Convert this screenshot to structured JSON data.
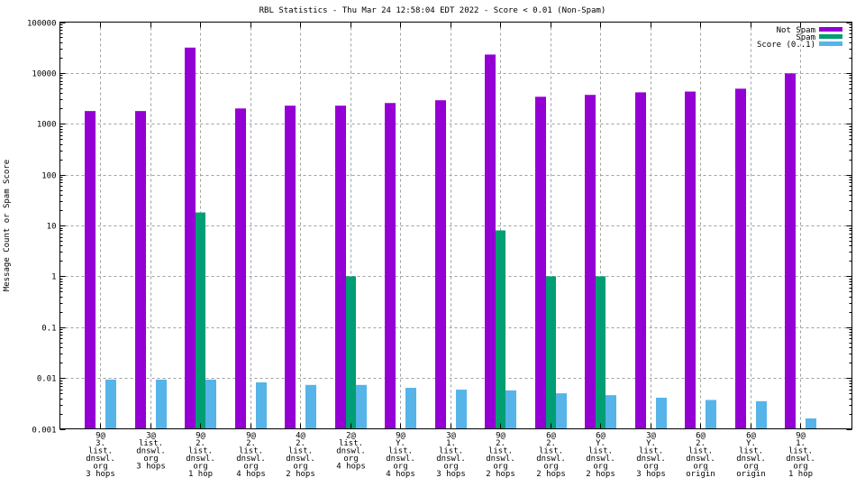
{
  "chart_data": {
    "type": "bar",
    "title": "RBL Statistics - Thu Mar 24 12:58:04 EDT 2022 - Score < 0.01 (Non-Spam)",
    "xlabel": "",
    "ylabel": "Message Count or Spam Score",
    "yscale": "log",
    "ylim": [
      0.001,
      100000
    ],
    "yticks": [
      "0.001",
      "0.01",
      "0.1",
      "1",
      "10",
      "100",
      "1000",
      "10000",
      "100000"
    ],
    "ytick_values": [
      0.001,
      0.01,
      0.1,
      1,
      10,
      100,
      1000,
      10000,
      100000
    ],
    "grid": true,
    "legend_position": "top-right",
    "categories": [
      [
        "9@",
        "3.",
        "list.",
        "dnswl.",
        "org",
        "3 hops"
      ],
      [
        "3@",
        "list.",
        "dnswl.",
        "org",
        "3 hops"
      ],
      [
        "9@",
        "2.",
        "list.",
        "dnswl.",
        "org",
        "1 hop"
      ],
      [
        "9@",
        "2.",
        "list.",
        "dnswl.",
        "org",
        "4 hops"
      ],
      [
        "4@",
        "2.",
        "list.",
        "dnswl.",
        "org",
        "2 hops"
      ],
      [
        "2@",
        "list.",
        "dnswl.",
        "org",
        "4 hops"
      ],
      [
        "9@",
        "Y.",
        "list.",
        "dnswl.",
        "org",
        "4 hops"
      ],
      [
        "3@",
        "1.",
        "list.",
        "dnswl.",
        "org",
        "3 hops"
      ],
      [
        "9@",
        "2.",
        "list.",
        "dnswl.",
        "org",
        "2 hops"
      ],
      [
        "6@",
        "2.",
        "list.",
        "dnswl.",
        "org",
        "2 hops"
      ],
      [
        "6@",
        "Y.",
        "list.",
        "dnswl.",
        "org",
        "2 hops"
      ],
      [
        "3@",
        "Y.",
        "list.",
        "dnswl.",
        "org",
        "3 hops"
      ],
      [
        "6@",
        "2.",
        "list.",
        "dnswl.",
        "org",
        "origin"
      ],
      [
        "6@",
        "Y.",
        "list.",
        "dnswl.",
        "org",
        "origin"
      ],
      [
        "9@",
        "1.",
        "list.",
        "dnswl.",
        "org",
        "1 hop"
      ]
    ],
    "series": [
      {
        "name": "Not Spam",
        "color": "#9400d3",
        "values": [
          1780,
          1780,
          31500,
          2000,
          2270,
          2270,
          2560,
          2900,
          23000,
          3400,
          3700,
          4150,
          4300,
          4900,
          9800
        ]
      },
      {
        "name": "Spam",
        "color": "#009e73",
        "values": [
          0,
          0,
          18,
          0,
          0,
          1,
          0,
          0,
          8,
          1,
          1,
          0,
          0,
          0,
          0
        ]
      },
      {
        "name": "Score (0..1)",
        "color": "#56b4e9",
        "values": [
          0.0093,
          0.0093,
          0.0093,
          0.0082,
          0.0073,
          0.0073,
          0.0064,
          0.0059,
          0.0057,
          0.005,
          0.0046,
          0.0041,
          0.0037,
          0.0035,
          0.0016
        ]
      }
    ]
  }
}
